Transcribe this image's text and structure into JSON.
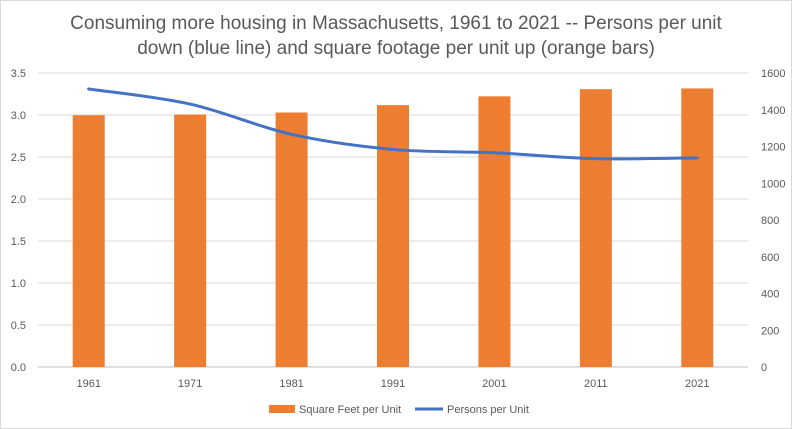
{
  "chart_data": {
    "type": "bar+line",
    "title_lines": [
      "Consuming more housing in Massachusetts, 1961 to 2021 -- Persons per unit",
      "down (blue line) and square footage per unit up (orange bars)"
    ],
    "categories": [
      "1961",
      "1971",
      "1981",
      "1991",
      "2001",
      "2011",
      "2021"
    ],
    "series": [
      {
        "name": "Square Feet per Unit",
        "type": "bar",
        "axis": "secondary",
        "color": "#ed7d31",
        "values": [
          1370,
          1374,
          1385,
          1425,
          1473,
          1512,
          1516
        ]
      },
      {
        "name": "Persons per Unit",
        "type": "line",
        "axis": "primary",
        "color": "#4472c4",
        "values": [
          3.31,
          3.13,
          2.77,
          2.59,
          2.55,
          2.48,
          2.49
        ]
      }
    ],
    "y_primary": {
      "ylim": [
        0,
        3.5
      ],
      "ticks": [
        "0.0",
        "0.5",
        "1.0",
        "1.5",
        "2.0",
        "2.5",
        "3.0",
        "3.5"
      ]
    },
    "y_secondary": {
      "ylim": [
        0,
        1600
      ],
      "ticks": [
        "0",
        "200",
        "400",
        "600",
        "800",
        "1000",
        "1200",
        "1400",
        "1600"
      ]
    },
    "xlabel": "",
    "ylabel": "",
    "grid": true,
    "legend_position": "bottom"
  }
}
